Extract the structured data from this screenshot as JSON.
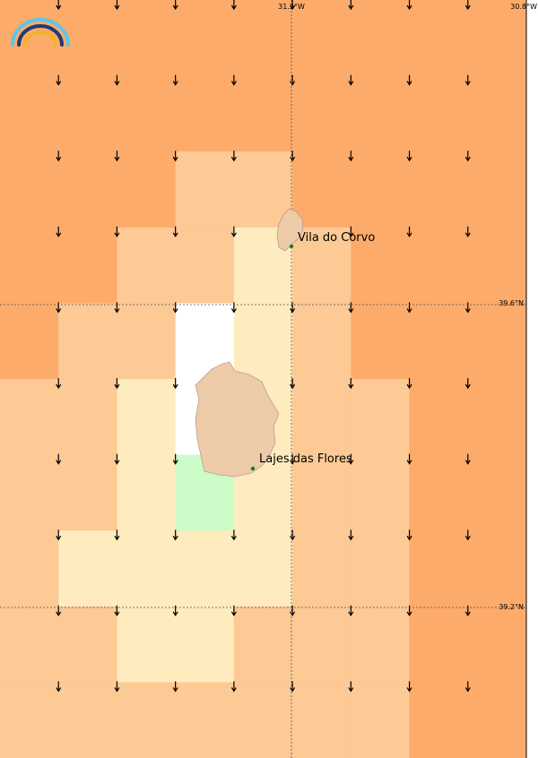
{
  "map": {
    "longitude_labels": [
      "31.2°W",
      "30.8°W"
    ],
    "latitude_labels": [
      "39.6°N",
      "39.2°N"
    ],
    "places": [
      "Vila do Corvo",
      "Lajes das Flores"
    ]
  }
}
